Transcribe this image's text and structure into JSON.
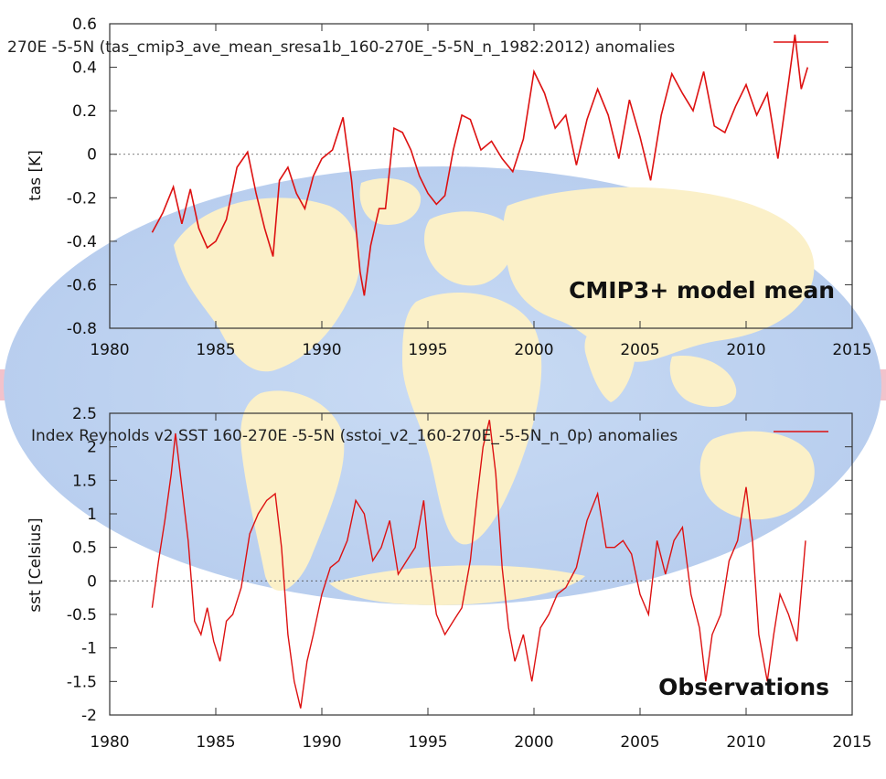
{
  "chart_data": [
    {
      "type": "line",
      "legend": "270E -5-5N (tas_cmip3_ave_mean_sresa1b_160-270E_-5-5N_n_1982:2012) anomalies",
      "ylabel": "tas [K]",
      "xlabel": "",
      "panel_label": "CMIP3+ model mean",
      "xlim": [
        1980,
        2015
      ],
      "ylim": [
        -0.8,
        0.6
      ],
      "xticks": [
        1980,
        1985,
        1990,
        1995,
        2000,
        2005,
        2010,
        2015
      ],
      "yticks": [
        "0.6",
        "0.4",
        "0.2",
        "0",
        "-0.2",
        "-0.4",
        "-0.6",
        "-0.8"
      ],
      "ytick_values": [
        0.6,
        0.4,
        0.2,
        0,
        -0.2,
        -0.4,
        -0.6,
        -0.8
      ],
      "zero_line": true,
      "series": [
        {
          "name": "tas anomalies",
          "color": "#dd1111",
          "x": [
            1982.0,
            1982.5,
            1983.0,
            1983.4,
            1983.8,
            1984.2,
            1984.6,
            1985.0,
            1985.5,
            1986.0,
            1986.5,
            1986.9,
            1987.3,
            1987.7,
            1988.0,
            1988.4,
            1988.8,
            1989.2,
            1989.6,
            1990.0,
            1990.5,
            1991.0,
            1991.4,
            1991.8,
            1992.0,
            1992.3,
            1992.7,
            1993.0,
            1993.4,
            1993.8,
            1994.2,
            1994.6,
            1995.0,
            1995.4,
            1995.8,
            1996.2,
            1996.6,
            1997.0,
            1997.5,
            1998.0,
            1998.5,
            1999.0,
            1999.5,
            2000.0,
            2000.5,
            2001.0,
            2001.5,
            2002.0,
            2002.5,
            2003.0,
            2003.5,
            2004.0,
            2004.5,
            2005.0,
            2005.5,
            2006.0,
            2006.5,
            2007.0,
            2007.5,
            2008.0,
            2008.5,
            2009.0,
            2009.5,
            2010.0,
            2010.5,
            2011.0,
            2011.5,
            2012.0,
            2012.3,
            2012.6,
            2012.9
          ],
          "y": [
            -0.36,
            -0.27,
            -0.15,
            -0.32,
            -0.16,
            -0.34,
            -0.43,
            -0.4,
            -0.3,
            -0.06,
            0.01,
            -0.18,
            -0.34,
            -0.47,
            -0.12,
            -0.06,
            -0.18,
            -0.25,
            -0.1,
            -0.02,
            0.02,
            0.17,
            -0.12,
            -0.54,
            -0.65,
            -0.42,
            -0.25,
            -0.25,
            0.12,
            0.1,
            0.02,
            -0.1,
            -0.18,
            -0.23,
            -0.19,
            0.02,
            0.18,
            0.16,
            0.02,
            0.06,
            -0.02,
            -0.08,
            0.07,
            0.38,
            0.28,
            0.12,
            0.18,
            -0.05,
            0.16,
            0.3,
            0.18,
            -0.02,
            0.25,
            0.08,
            -0.12,
            0.18,
            0.37,
            0.28,
            0.2,
            0.38,
            0.13,
            0.1,
            0.22,
            0.32,
            0.18,
            0.28,
            -0.02,
            0.33,
            0.55,
            0.3,
            0.4
          ]
        }
      ]
    },
    {
      "type": "line",
      "legend": "Index Reynolds v2 SST 160-270E -5-5N (sstoi_v2_160-270E_-5-5N_n_0p) anomalies",
      "ylabel": "sst [Celsius]",
      "xlabel": "",
      "panel_label": "Observations",
      "xlim": [
        1980,
        2015
      ],
      "ylim": [
        -2,
        2.5
      ],
      "xticks": [
        1980,
        1985,
        1990,
        1995,
        2000,
        2005,
        2010,
        2015
      ],
      "yticks": [
        "2.5",
        "2",
        "1.5",
        "1",
        "0.5",
        "0",
        "-0.5",
        "-1",
        "-1.5",
        "-2"
      ],
      "ytick_values": [
        2.5,
        2,
        1.5,
        1,
        0.5,
        0,
        -0.5,
        -1,
        -1.5,
        -2
      ],
      "zero_line": true,
      "series": [
        {
          "name": "sst anomalies",
          "color": "#dd1111",
          "x": [
            1982.0,
            1982.3,
            1982.6,
            1982.9,
            1983.1,
            1983.4,
            1983.7,
            1984.0,
            1984.3,
            1984.6,
            1984.9,
            1985.2,
            1985.5,
            1985.8,
            1986.2,
            1986.6,
            1987.0,
            1987.4,
            1987.8,
            1988.1,
            1988.4,
            1988.7,
            1989.0,
            1989.3,
            1989.6,
            1990.0,
            1990.4,
            1990.8,
            1991.2,
            1991.6,
            1992.0,
            1992.4,
            1992.8,
            1993.2,
            1993.6,
            1994.0,
            1994.4,
            1994.8,
            1995.1,
            1995.4,
            1995.8,
            1996.2,
            1996.6,
            1997.0,
            1997.3,
            1997.6,
            1997.9,
            1998.2,
            1998.5,
            1998.8,
            1999.1,
            1999.5,
            1999.9,
            2000.3,
            2000.7,
            2001.1,
            2001.5,
            2002.0,
            2002.5,
            2003.0,
            2003.4,
            2003.8,
            2004.2,
            2004.6,
            2005.0,
            2005.4,
            2005.8,
            2006.2,
            2006.6,
            2007.0,
            2007.4,
            2007.8,
            2008.1,
            2008.4,
            2008.8,
            2009.2,
            2009.6,
            2010.0,
            2010.3,
            2010.6,
            2011.0,
            2011.3,
            2011.6,
            2012.0,
            2012.4,
            2012.8
          ],
          "y": [
            -0.4,
            0.3,
            0.9,
            1.6,
            2.2,
            1.4,
            0.6,
            -0.6,
            -0.8,
            -0.4,
            -0.9,
            -1.2,
            -0.6,
            -0.5,
            -0.1,
            0.7,
            1.0,
            1.2,
            1.3,
            0.5,
            -0.8,
            -1.5,
            -1.9,
            -1.2,
            -0.8,
            -0.2,
            0.2,
            0.3,
            0.6,
            1.2,
            1.0,
            0.3,
            0.5,
            0.9,
            0.1,
            0.3,
            0.5,
            1.2,
            0.2,
            -0.5,
            -0.8,
            -0.6,
            -0.4,
            0.3,
            1.2,
            2.0,
            2.4,
            1.6,
            0.2,
            -0.7,
            -1.2,
            -0.8,
            -1.5,
            -0.7,
            -0.5,
            -0.2,
            -0.1,
            0.2,
            0.9,
            1.3,
            0.5,
            0.5,
            0.6,
            0.4,
            -0.2,
            -0.5,
            0.6,
            0.1,
            0.6,
            0.8,
            -0.2,
            -0.7,
            -1.5,
            -0.8,
            -0.5,
            0.3,
            0.6,
            1.4,
            0.6,
            -0.8,
            -1.5,
            -0.8,
            -0.2,
            -0.5,
            -0.9,
            0.6
          ]
        }
      ]
    }
  ]
}
